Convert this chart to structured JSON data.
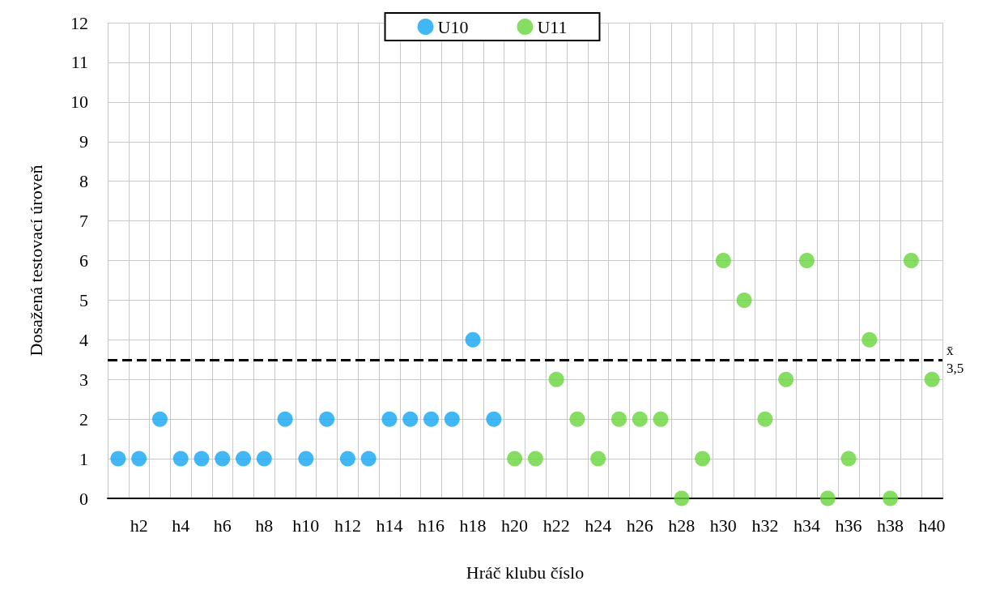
{
  "chart_data": {
    "type": "scatter",
    "xlabel": "Hráč klubu číslo",
    "ylabel": "Dosažená testovací úroveň",
    "categories": [
      null,
      "h2",
      null,
      "h4",
      null,
      "h6",
      null,
      "h8",
      null,
      "h10",
      null,
      "h12",
      null,
      "h14",
      null,
      "h16",
      null,
      "h18",
      null,
      "h20",
      null,
      "h22",
      null,
      "h24",
      null,
      "h26",
      null,
      "h28",
      null,
      "h30",
      null,
      "h32",
      null,
      "h34",
      null,
      "h36",
      null,
      "h38",
      null,
      "h40"
    ],
    "series": [
      {
        "name": "U10",
        "color": "#12a5f4",
        "values": [
          1,
          1,
          2,
          1,
          1,
          1,
          1,
          1,
          2,
          1,
          2,
          1,
          1,
          2,
          2,
          2,
          2,
          4,
          2,
          null,
          null,
          null,
          null,
          null,
          null,
          null,
          null,
          null,
          null,
          null,
          null,
          null,
          null,
          null,
          null,
          null,
          null,
          null,
          null,
          null
        ]
      },
      {
        "name": "U11",
        "color": "#66d63a",
        "values": [
          null,
          null,
          null,
          null,
          null,
          null,
          null,
          null,
          null,
          null,
          null,
          null,
          null,
          null,
          null,
          null,
          null,
          null,
          null,
          1,
          1,
          3,
          2,
          1,
          2,
          2,
          2,
          0,
          1,
          6,
          5,
          2,
          3,
          6,
          0,
          1,
          4,
          0,
          6,
          3
        ]
      }
    ],
    "ylim": [
      0,
      12
    ],
    "yticks": [
      0,
      1,
      2,
      3,
      4,
      5,
      6,
      7,
      8,
      9,
      10,
      11,
      12
    ],
    "grid": true,
    "legend": "top",
    "marker": "circle",
    "ref_lines": [
      {
        "axis": "y",
        "value": 3.5,
        "label": "x̄\n3,5",
        "color": "#000000",
        "line_style": "dashed"
      }
    ]
  }
}
